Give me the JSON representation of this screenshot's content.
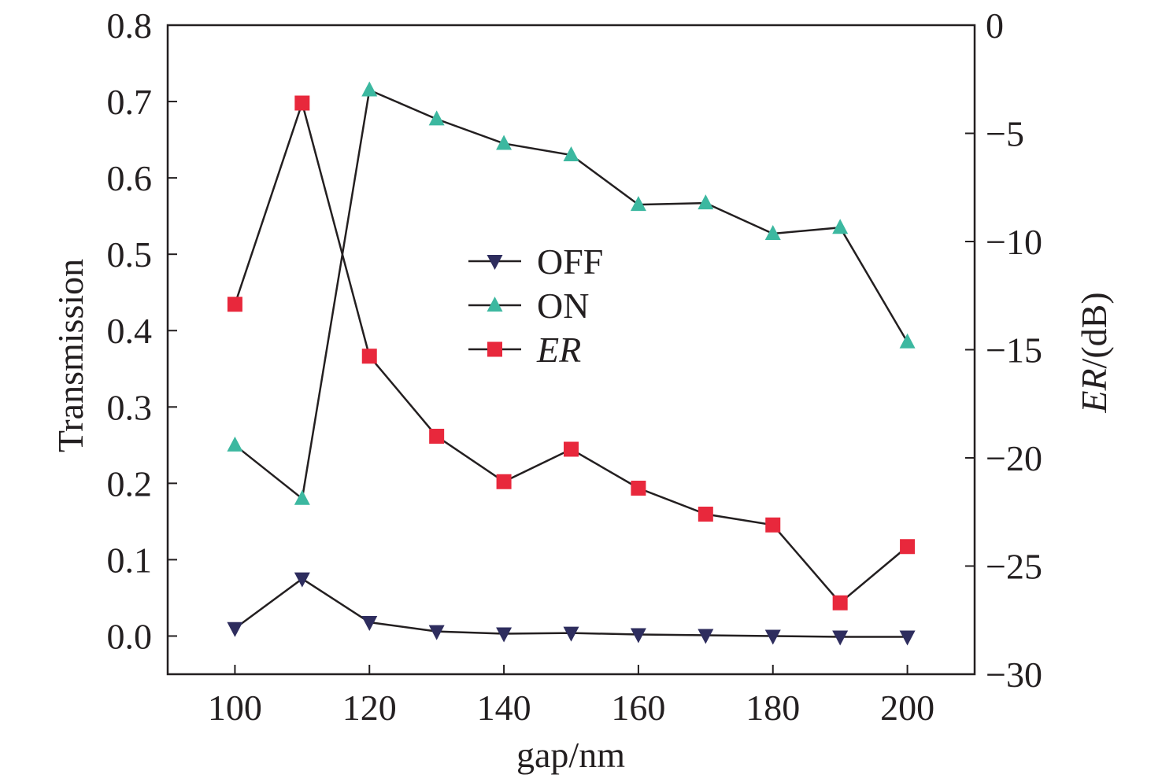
{
  "chart_data": {
    "type": "line",
    "xlabel": "gap/nm",
    "ylabel_left": "Transmission",
    "ylabel_right_italic": "ER",
    "ylabel_right_suffix": "/(dB)",
    "x": [
      100,
      110,
      120,
      130,
      140,
      150,
      160,
      170,
      180,
      190,
      200
    ],
    "xlim": [
      90,
      210
    ],
    "xticks": [
      100,
      120,
      140,
      160,
      180,
      200
    ],
    "ylim_left": [
      -0.05,
      0.8
    ],
    "yticks_left": [
      0.0,
      0.1,
      0.2,
      0.3,
      0.4,
      0.5,
      0.6,
      0.7,
      0.8
    ],
    "ytick_labels_left": [
      "0.0",
      "0.1",
      "0.2",
      "0.3",
      "0.4",
      "0.5",
      "0.6",
      "0.7",
      "0.8"
    ],
    "ylim_right": [
      -30,
      0
    ],
    "yticks_right": [
      0,
      -5,
      -10,
      -15,
      -20,
      -25,
      -30
    ],
    "ytick_labels_right": [
      "0",
      "−5",
      "−10",
      "−15",
      "−20",
      "−25",
      "−30"
    ],
    "grid": false,
    "legend_position": "center",
    "series": [
      {
        "name": "OFF",
        "axis": "left",
        "marker": "triangle-down",
        "color": "#2e2d5e",
        "values": [
          0.01,
          0.075,
          0.018,
          0.006,
          0.003,
          0.004,
          0.002,
          0.001,
          0.0,
          -0.001,
          -0.001
        ]
      },
      {
        "name": "ON",
        "axis": "left",
        "marker": "triangle-up",
        "color": "#3cb8a0",
        "values": [
          0.25,
          0.18,
          0.715,
          0.677,
          0.645,
          0.63,
          0.565,
          0.567,
          0.527,
          0.535,
          0.385
        ]
      },
      {
        "name": "ER",
        "name_italic": true,
        "axis": "right",
        "marker": "square",
        "color": "#e8283c",
        "values": [
          -12.9,
          -3.6,
          -15.3,
          -19.0,
          -21.1,
          -19.6,
          -21.4,
          -22.6,
          -23.1,
          -26.7,
          -24.1
        ]
      }
    ],
    "line_color": "#231f20",
    "axis_color": "#231f20"
  }
}
